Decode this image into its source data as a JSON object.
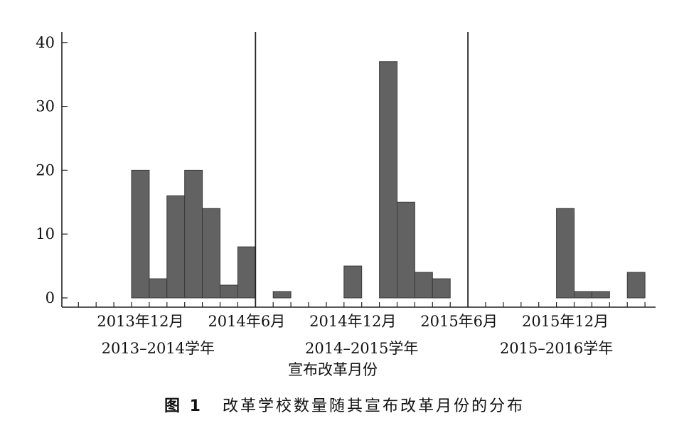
{
  "figure": {
    "caption_number": "图 1",
    "caption_text": "改革学校数量随其宣布改革月份的分布"
  },
  "chart_data": {
    "type": "bar",
    "xlabel": "宣布改革月份",
    "ylabel": "",
    "ylim": [
      0,
      41
    ],
    "yticks": [
      0,
      10,
      20,
      30,
      40
    ],
    "bin_start": "2013-08",
    "bin_width": "1 month",
    "months": [
      "2013-08",
      "2013-09",
      "2013-10",
      "2013-11",
      "2013-12",
      "2014-01",
      "2014-02",
      "2014-03",
      "2014-04",
      "2014-05",
      "2014-06",
      "2014-07",
      "2014-08",
      "2014-09",
      "2014-10",
      "2014-11",
      "2014-12",
      "2015-01",
      "2015-02",
      "2015-03",
      "2015-04",
      "2015-05",
      "2015-06",
      "2015-07",
      "2015-08",
      "2015-09",
      "2015-10",
      "2015-11",
      "2015-12",
      "2016-01",
      "2016-02",
      "2016-03",
      "2016-04"
    ],
    "values": [
      0,
      0,
      0,
      0,
      20,
      3,
      16,
      20,
      14,
      2,
      8,
      0,
      1,
      0,
      0,
      0,
      5,
      0,
      37,
      15,
      4,
      3,
      0,
      0,
      0,
      0,
      0,
      0,
      14,
      1,
      1,
      0,
      4
    ],
    "xtick_labels": [
      {
        "label": "2013年12月",
        "month": "2013-12"
      },
      {
        "label": "2014年6月",
        "month": "2014-06"
      },
      {
        "label": "2014年12月",
        "month": "2014-12"
      },
      {
        "label": "2015年6月",
        "month": "2015-06"
      },
      {
        "label": "2015年12月",
        "month": "2015-12"
      }
    ],
    "school_years": [
      {
        "label": "2013–2014学年",
        "from": "2013-08",
        "to": "2014-06"
      },
      {
        "label": "2014–2015学年",
        "from": "2014-07",
        "to": "2015-06"
      },
      {
        "label": "2015–2016学年",
        "from": "2015-07",
        "to": "2016-04"
      }
    ],
    "reference_lines": [
      "2014-06",
      "2015-06"
    ],
    "grid": false,
    "legend": "none"
  }
}
